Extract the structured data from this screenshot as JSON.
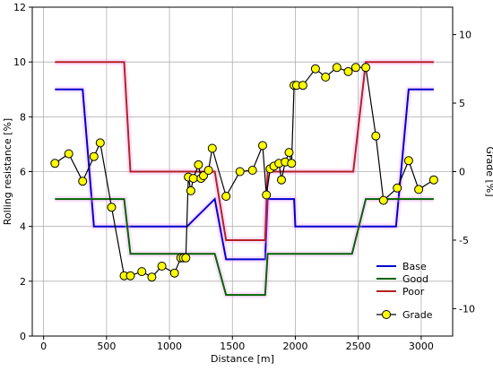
{
  "chart_data": {
    "type": "line",
    "xlabel": "Distance [m]",
    "ylabel_left": "Rolling resistance [%]",
    "ylabel_right": "Grade [%]",
    "xlim": [
      -90,
      3250
    ],
    "ylim_left": [
      0,
      12
    ],
    "ylim_right": [
      -12,
      12
    ],
    "x_ticks": [
      0,
      500,
      1000,
      1500,
      2000,
      2500,
      3000
    ],
    "y_left_ticks": [
      0,
      2,
      4,
      6,
      8,
      10,
      12
    ],
    "y_right_ticks": [
      -10,
      -5,
      0,
      5,
      10
    ],
    "grid": true,
    "legend_position": "lower right",
    "series": [
      {
        "name": "Base",
        "axis": "left",
        "color": "#0000cc",
        "x": [
          90,
          310,
          400,
          1140,
          1360,
          1450,
          1760,
          1780,
          1990,
          2000,
          2800,
          2900,
          3100
        ],
        "y": [
          9.0,
          9.0,
          4.0,
          4.0,
          5.0,
          2.8,
          2.8,
          5.0,
          5.0,
          4.0,
          4.0,
          9.0,
          9.0
        ]
      },
      {
        "name": "Good",
        "axis": "left",
        "color": "#006400",
        "x": [
          90,
          640,
          690,
          1140,
          1360,
          1450,
          1760,
          1780,
          2450,
          2560,
          3100
        ],
        "y": [
          5.0,
          5.0,
          3.0,
          3.0,
          3.0,
          1.5,
          1.5,
          3.0,
          3.0,
          5.0,
          5.0
        ]
      },
      {
        "name": "Poor",
        "axis": "left",
        "color": "#b22222",
        "x": [
          90,
          640,
          690,
          1360,
          1450,
          1760,
          1780,
          2460,
          2560,
          3100
        ],
        "y": [
          10.0,
          10.0,
          6.0,
          6.0,
          3.5,
          3.5,
          6.0,
          6.0,
          10.0,
          10.0
        ]
      },
      {
        "name": "Grade",
        "axis": "right",
        "color": "#000000",
        "marker_color": "#ffff00",
        "x": [
          90,
          200,
          310,
          400,
          450,
          540,
          640,
          690,
          780,
          860,
          940,
          1040,
          1090,
          1110,
          1130,
          1150,
          1170,
          1190,
          1230,
          1250,
          1270,
          1310,
          1340,
          1450,
          1560,
          1660,
          1740,
          1770,
          1800,
          1830,
          1870,
          1890,
          1920,
          1950,
          1970,
          1990,
          2010,
          2060,
          2160,
          2240,
          2330,
          2420,
          2480,
          2560,
          2640,
          2700,
          2810,
          2900,
          2980,
          3100
        ],
        "y": [
          0.6,
          1.3,
          -0.7,
          1.1,
          2.1,
          -2.6,
          -7.6,
          -7.6,
          -7.3,
          -7.7,
          -6.9,
          -7.4,
          -6.3,
          -6.3,
          -6.3,
          -0.4,
          -1.4,
          -0.5,
          0.5,
          -0.5,
          -0.3,
          0.1,
          1.7,
          -1.8,
          0.0,
          0.1,
          1.9,
          -1.7,
          0.2,
          0.4,
          0.6,
          -0.6,
          0.7,
          1.4,
          0.6,
          6.3,
          6.3,
          6.3,
          7.5,
          6.9,
          7.6,
          7.3,
          7.6,
          7.6,
          2.6,
          -2.1,
          -1.2,
          0.8,
          -1.3,
          -0.6
        ]
      }
    ]
  }
}
